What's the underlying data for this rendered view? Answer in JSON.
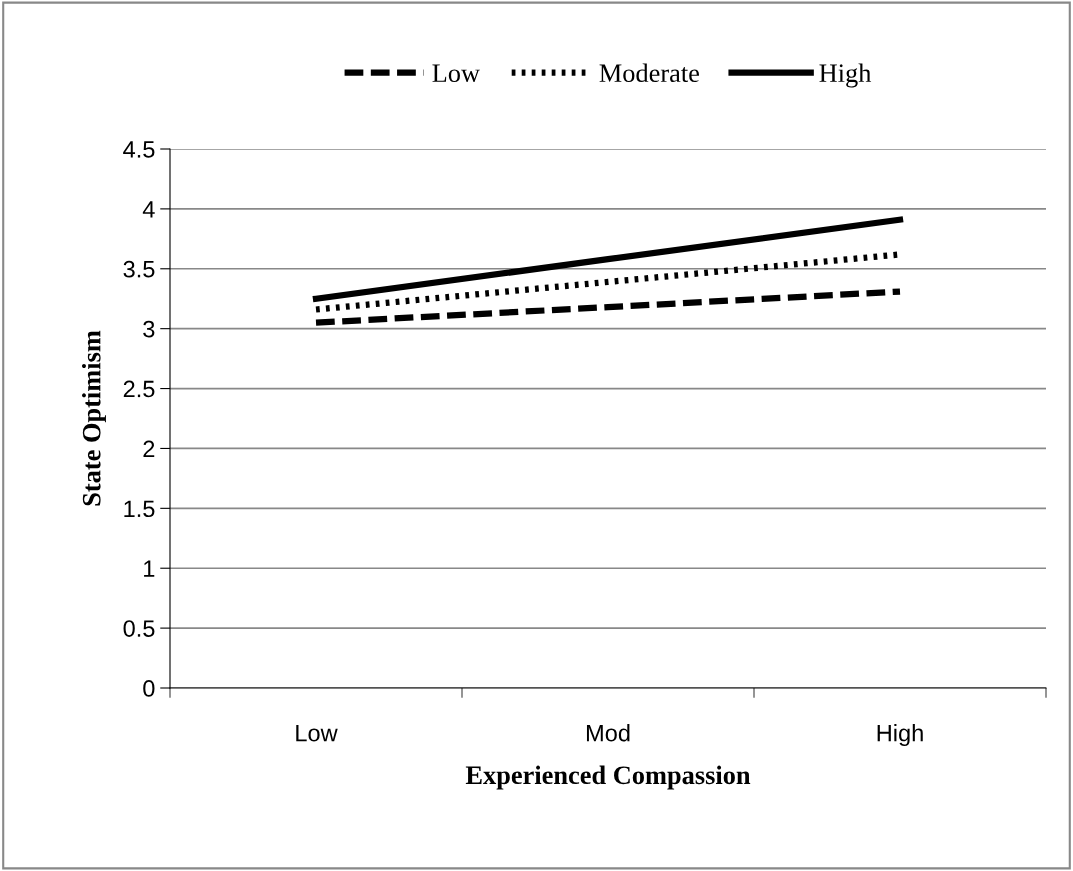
{
  "chart_data": {
    "type": "line",
    "xlabel": "Experienced Compassion",
    "ylabel": "State Optimism",
    "categories": [
      "Low",
      "Mod",
      "High"
    ],
    "series": [
      {
        "name": "Low",
        "color": "#000000",
        "values": [
          3.05,
          3.18,
          3.31
        ],
        "line_style": "dashed"
      },
      {
        "name": "Moderate",
        "color": "#000000",
        "values": [
          3.16,
          3.39,
          3.62
        ],
        "line_style": "dotted"
      },
      {
        "name": "High",
        "color": "#000000",
        "values": [
          3.25,
          3.58,
          3.91
        ],
        "line_style": "solid"
      }
    ],
    "ylim": [
      0,
      4.5
    ],
    "yticks": [
      0,
      0.5,
      1,
      1.5,
      2,
      2.5,
      3,
      3.5,
      4,
      4.5
    ],
    "grid": "y",
    "legend": "top",
    "marker": "none"
  }
}
